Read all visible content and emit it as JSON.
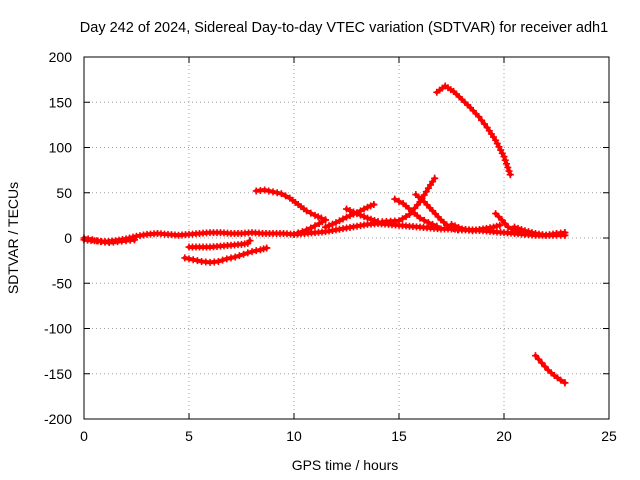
{
  "chart_data": {
    "type": "scatter",
    "title": "Day 242 of 2024, Sidereal Day-to-day VTEC variation (SDTVAR) for receiver adh1",
    "xlabel": "GPS time / hours",
    "ylabel": "SDTVAR / TECUs",
    "xlim": [
      0,
      25
    ],
    "ylim": [
      -200,
      200
    ],
    "x_ticks": [
      0,
      5,
      10,
      15,
      20,
      25
    ],
    "y_ticks": [
      -200,
      -150,
      -100,
      -50,
      0,
      50,
      100,
      150,
      200
    ],
    "grid": true,
    "marker": "+",
    "series_color": "#ff0000",
    "series": [
      {
        "name": "arc-baseline",
        "points": [
          [
            0,
            -2
          ],
          [
            0.5,
            -3
          ],
          [
            1,
            -4
          ],
          [
            1.5,
            -3
          ],
          [
            2,
            -1
          ],
          [
            2.5,
            2
          ],
          [
            3,
            4
          ],
          [
            3.5,
            5
          ],
          [
            4,
            4
          ],
          [
            4.5,
            3
          ],
          [
            5,
            4
          ],
          [
            5.5,
            5
          ],
          [
            6,
            6
          ],
          [
            6.5,
            6
          ],
          [
            7,
            5
          ],
          [
            7.5,
            5
          ],
          [
            8,
            6
          ],
          [
            8.5,
            5
          ],
          [
            9,
            5
          ],
          [
            9.5,
            5
          ],
          [
            10,
            4
          ],
          [
            10.5,
            5
          ],
          [
            11,
            6
          ],
          [
            11.5,
            7
          ],
          [
            12,
            9
          ],
          [
            12.5,
            11
          ],
          [
            13,
            13
          ],
          [
            13.5,
            15
          ],
          [
            14,
            16
          ],
          [
            14.5,
            15
          ],
          [
            15,
            14
          ],
          [
            15.5,
            13
          ],
          [
            16,
            12
          ],
          [
            16.5,
            11
          ],
          [
            17,
            10
          ],
          [
            17.5,
            10
          ],
          [
            18,
            9
          ],
          [
            18.5,
            9
          ],
          [
            19,
            8
          ],
          [
            19.5,
            7
          ],
          [
            20,
            6
          ],
          [
            20.5,
            5
          ],
          [
            21,
            4
          ],
          [
            21.5,
            3
          ],
          [
            22,
            3
          ],
          [
            22.5,
            3
          ],
          [
            22.9,
            3
          ]
        ]
      },
      {
        "name": "arc-neg-dip",
        "points": [
          [
            0,
            0
          ],
          [
            0.4,
            -2
          ],
          [
            0.8,
            -4
          ],
          [
            1.2,
            -5
          ],
          [
            1.6,
            -4
          ],
          [
            2,
            -3
          ],
          [
            2.4,
            -2
          ]
        ]
      },
      {
        "name": "arc-neg-a",
        "points": [
          [
            5,
            -10
          ],
          [
            5.5,
            -10
          ],
          [
            6,
            -10
          ],
          [
            6.5,
            -9
          ],
          [
            7,
            -8
          ],
          [
            7.5,
            -7
          ],
          [
            7.8,
            -6
          ],
          [
            7.9,
            -3
          ]
        ]
      },
      {
        "name": "arc-neg-b",
        "points": [
          [
            4.8,
            -22
          ],
          [
            5.2,
            -24
          ],
          [
            5.6,
            -26
          ],
          [
            6,
            -27
          ],
          [
            6.4,
            -26
          ],
          [
            6.8,
            -23
          ],
          [
            7.2,
            -21
          ],
          [
            7.6,
            -18
          ],
          [
            8,
            -15
          ],
          [
            8.4,
            -13
          ],
          [
            8.7,
            -11
          ]
        ]
      },
      {
        "name": "arc-mid-high",
        "points": [
          [
            8.2,
            52
          ],
          [
            8.6,
            53
          ],
          [
            9,
            51
          ],
          [
            9.4,
            49
          ],
          [
            9.8,
            44
          ],
          [
            10.2,
            37
          ],
          [
            10.6,
            30
          ],
          [
            11,
            25
          ],
          [
            11.3,
            22
          ]
        ]
      },
      {
        "name": "arc-mid-rise",
        "points": [
          [
            10,
            4
          ],
          [
            10.4,
            7
          ],
          [
            10.8,
            11
          ],
          [
            11.2,
            16
          ],
          [
            11.5,
            20
          ]
        ]
      },
      {
        "name": "arc-x-1",
        "points": [
          [
            11.5,
            12
          ],
          [
            12,
            17
          ],
          [
            12.5,
            23
          ],
          [
            13,
            28
          ],
          [
            13.5,
            34
          ],
          [
            13.8,
            37
          ]
        ]
      },
      {
        "name": "arc-x-2",
        "points": [
          [
            12.5,
            32
          ],
          [
            13,
            27
          ],
          [
            13.5,
            22
          ],
          [
            14,
            18
          ]
        ]
      },
      {
        "name": "arc-hump",
        "points": [
          [
            14.8,
            43
          ],
          [
            15.2,
            38
          ],
          [
            15.6,
            30
          ],
          [
            16,
            22
          ],
          [
            16.4,
            17
          ],
          [
            16.8,
            13
          ]
        ]
      },
      {
        "name": "arc-peak",
        "points": [
          [
            14.2,
            18
          ],
          [
            15,
            19
          ],
          [
            15.5,
            26
          ],
          [
            16,
            40
          ],
          [
            16.4,
            55
          ],
          [
            16.7,
            66
          ]
        ]
      },
      {
        "name": "arc-cross",
        "points": [
          [
            15.8,
            48
          ],
          [
            16.2,
            40
          ],
          [
            16.6,
            30
          ],
          [
            17,
            20
          ],
          [
            17.4,
            12
          ],
          [
            17.8,
            9
          ]
        ]
      },
      {
        "name": "arc-top",
        "points": [
          [
            16.8,
            161
          ],
          [
            17.2,
            168
          ],
          [
            17.6,
            162
          ],
          [
            18,
            153
          ],
          [
            18.4,
            144
          ],
          [
            18.8,
            134
          ],
          [
            19.2,
            122
          ],
          [
            19.6,
            108
          ],
          [
            20,
            90
          ],
          [
            20.3,
            70
          ]
        ]
      },
      {
        "name": "arc-late",
        "points": [
          [
            17.5,
            15
          ],
          [
            18,
            10
          ],
          [
            18.5,
            8
          ],
          [
            19,
            10
          ],
          [
            19.5,
            12
          ],
          [
            19.8,
            14
          ]
        ]
      },
      {
        "name": "arc-late-2",
        "points": [
          [
            19.6,
            27
          ],
          [
            19.9,
            20
          ],
          [
            20.2,
            12
          ],
          [
            20.6,
            8
          ],
          [
            21,
            5
          ]
        ]
      },
      {
        "name": "arc-late-3",
        "points": [
          [
            20.5,
            12
          ],
          [
            21,
            8
          ],
          [
            21.5,
            5
          ],
          [
            22,
            3
          ],
          [
            22.5,
            5
          ],
          [
            22.9,
            6
          ]
        ]
      },
      {
        "name": "arc-bottom",
        "points": [
          [
            21.5,
            -130
          ],
          [
            21.8,
            -138
          ],
          [
            22.1,
            -146
          ],
          [
            22.4,
            -152
          ],
          [
            22.7,
            -157
          ],
          [
            22.9,
            -160
          ]
        ]
      }
    ]
  }
}
